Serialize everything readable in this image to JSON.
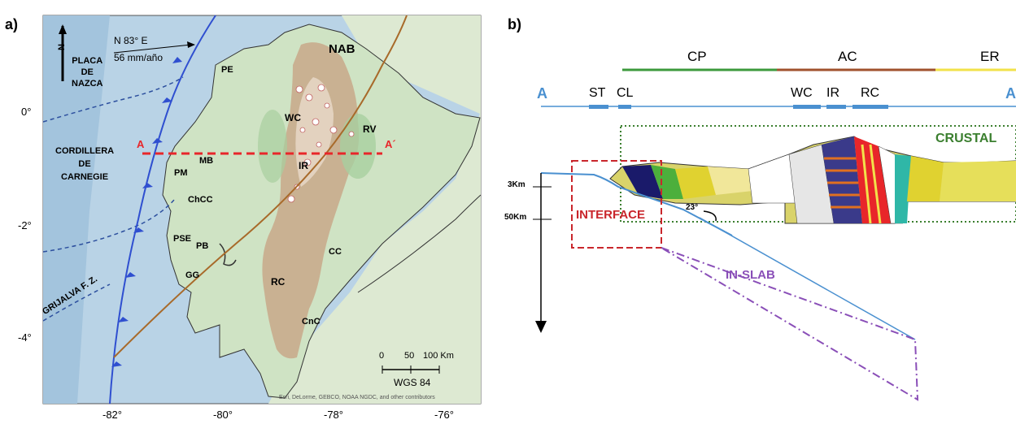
{
  "panel_a": {
    "label": "a)",
    "lat_ticks": [
      "0°",
      "-2°",
      "-4°"
    ],
    "lon_ticks": [
      "-82°",
      "-80°",
      "-78°",
      "-76°"
    ],
    "north_label": "N",
    "plate_label": [
      "PLACA",
      "DE",
      "NAZCA"
    ],
    "plate_motion": [
      "N 83° E",
      "56 mm/año"
    ],
    "cordillera_label": [
      "CORDILLERA",
      "DE",
      "CARNEGIE"
    ],
    "grijalva_label": "GRIJALVA F. Z.",
    "section_start": "A",
    "section_end": "A´",
    "regions": [
      "NAB",
      "PE",
      "WC",
      "RV",
      "IR",
      "MB",
      "PM",
      "ChCC",
      "PSE",
      "PB",
      "GG",
      "CC",
      "RC",
      "CnC"
    ],
    "scale_labels": [
      "0",
      "50",
      "100 Km"
    ],
    "datum": "WGS 84",
    "credit": "Esri, DeLorme, GEBCO, NOAA NGDC, and other contributors",
    "colors": {
      "ocean": "#b9d3e6",
      "land": "#cfe3c4",
      "highlands": "#c8a88a",
      "section_line": "#e8262a",
      "trench": "#2f4fd0",
      "fault": "#a86a2a"
    }
  },
  "panel_b": {
    "label": "b)",
    "top_units": [
      "CP",
      "AC",
      "ER"
    ],
    "profile_start": "A",
    "profile_end": "A",
    "profile_units": [
      "ST",
      "CL",
      "WC",
      "IR",
      "RC"
    ],
    "crustal_label": "CRUSTAL",
    "interface_label": "INTERFACE",
    "inslab_label": "IN-SLAB",
    "angle_label": "23°",
    "depth_labels": [
      "3Km",
      "50Km"
    ],
    "colors": {
      "cp_bar": "#3c9a3c",
      "ac_bar": "#a0522d",
      "er_bar": "#f2e24a",
      "crustal": "#3b7f2f",
      "interface": "#c9262c",
      "inslab": "#8a4fb8",
      "profile": "#4a90d0"
    }
  }
}
